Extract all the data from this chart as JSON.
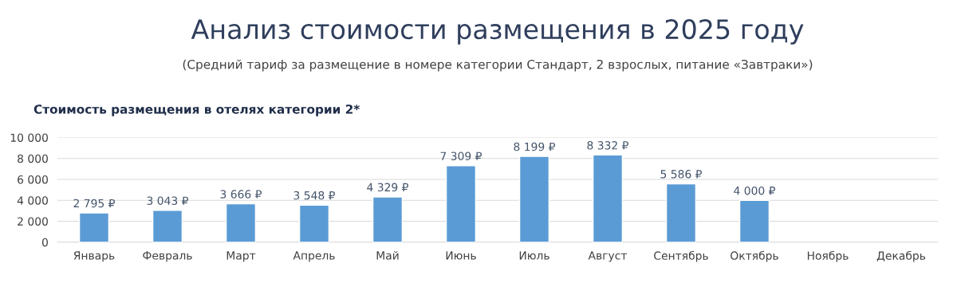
{
  "chart_data": {
    "type": "bar",
    "title": "Анализ стоимости размещения в 2025 году",
    "subtitle": "(Средний тариф за размещение в номере категории Стандарт, 2 взрослых, питание «Завтраки»)",
    "annotations": [
      "Стоимость размещения в отелях категории 2*"
    ],
    "categories": [
      "Январь",
      "Февраль",
      "Март",
      "Апрель",
      "Май",
      "Июнь",
      "Июль",
      "Август",
      "Сентябрь",
      "Октябрь",
      "Ноябрь",
      "Декабрь"
    ],
    "values": [
      2795,
      3043,
      3666,
      3548,
      4329,
      7309,
      8199,
      8332,
      5586,
      4000,
      null,
      null
    ],
    "value_labels": [
      "2 795 ₽",
      "3 043 ₽",
      "3 666 ₽",
      "3 548 ₽",
      "4 329 ₽",
      "7 309 ₽",
      "8 199 ₽",
      "8 332 ₽",
      "5 586 ₽",
      "4 000 ₽",
      null,
      null
    ],
    "color": "#5b9bd5",
    "ylim": [
      0,
      10000
    ],
    "yticks": [
      {
        "value": 0,
        "label": "0"
      },
      {
        "value": 2000,
        "label": "2 000"
      },
      {
        "value": 4000,
        "label": "4 000"
      },
      {
        "value": 6000,
        "label": "6 000"
      },
      {
        "value": 8000,
        "label": "8 000"
      },
      {
        "value": 10000,
        "label": "10 000"
      }
    ],
    "grid": "y",
    "legend": false
  }
}
